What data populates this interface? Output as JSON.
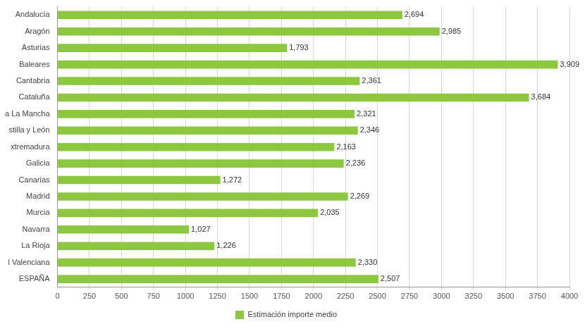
{
  "chart_data": {
    "type": "bar",
    "orientation": "horizontal",
    "categories": [
      "Andalucía",
      "Aragón",
      "Asturias",
      "Baleares",
      "Cantabria",
      "Cataluña",
      "a La Mancha",
      "stilla y León",
      "xtremadura",
      "Galicia",
      "Canarias",
      "Madrid",
      "Murcia",
      "Navarra",
      "La Rioja",
      "l Valenciana",
      "ESPAÑA"
    ],
    "series": [
      {
        "name": "Estimación importe medio",
        "color": "#8dc63f",
        "values": [
          2694,
          2985,
          1793,
          3909,
          2361,
          3684,
          2321,
          2346,
          2163,
          2236,
          1272,
          2269,
          2035,
          1027,
          1226,
          2330,
          2507
        ],
        "value_labels": [
          "2,694",
          "2,985",
          "1,793",
          "3,909",
          "2,361",
          "3,684",
          "2,321",
          "2,346",
          "2,163",
          "2,236",
          "1,272",
          "2,269",
          "2,035",
          "1,027",
          "1,226",
          "2,330",
          "2,507"
        ]
      }
    ],
    "xlim": [
      0,
      4000
    ],
    "xticks": [
      0,
      250,
      500,
      750,
      1000,
      1250,
      1500,
      1750,
      2000,
      2250,
      2500,
      2750,
      3000,
      3250,
      3500,
      3750,
      4000
    ],
    "grid": true,
    "legend": "bottom",
    "data_labels": true
  }
}
